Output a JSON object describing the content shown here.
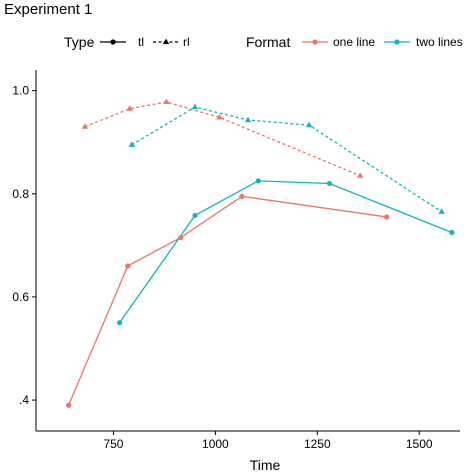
{
  "chart_data": {
    "type": "line",
    "title": "Experiment 1",
    "xlabel": "Time",
    "ylabel": "",
    "xlim": [
      560,
      1600
    ],
    "ylim": [
      0.34,
      1.04
    ],
    "x_ticks": [
      750,
      1000,
      1250,
      1500
    ],
    "x_tick_labels": [
      "750",
      "1000",
      "1250",
      "1500"
    ],
    "y_ticks": [
      0.4,
      0.6,
      0.8,
      1.0
    ],
    "y_tick_labels": [
      ".4",
      "0.6",
      "0.8",
      "1.0"
    ],
    "legend": {
      "placement": "top",
      "type_title": "Type",
      "type_entries": [
        {
          "label": "tl",
          "linestyle": "solid",
          "marker": "circle"
        },
        {
          "label": "rl",
          "linestyle": "dashed",
          "marker": "triangle"
        }
      ],
      "format_title": "Format",
      "format_entries": [
        {
          "label": "one line",
          "color": "#E8766D"
        },
        {
          "label": "two lines",
          "color": "#13B5BA"
        }
      ]
    },
    "series": [
      {
        "format": "one line",
        "type": "tl",
        "color": "#E8766D",
        "linestyle": "solid",
        "marker": "circle",
        "x": [
          640,
          785,
          915,
          1065,
          1420
        ],
        "y": [
          0.39,
          0.66,
          0.715,
          0.795,
          0.755
        ]
      },
      {
        "format": "two lines",
        "type": "tl",
        "color": "#13B5BA",
        "linestyle": "solid",
        "marker": "circle",
        "x": [
          765,
          950,
          1105,
          1280,
          1580
        ],
        "y": [
          0.55,
          0.758,
          0.825,
          0.82,
          0.725
        ]
      },
      {
        "format": "one line",
        "type": "rl",
        "color": "#E8766D",
        "linestyle": "dashed",
        "marker": "triangle",
        "x": [
          680,
          790,
          880,
          1010,
          1355
        ],
        "y": [
          0.93,
          0.965,
          0.978,
          0.948,
          0.835
        ]
      },
      {
        "format": "two lines",
        "type": "rl",
        "color": "#13B5BA",
        "linestyle": "dashed",
        "marker": "triangle",
        "x": [
          795,
          950,
          1080,
          1230,
          1555
        ],
        "y": [
          0.895,
          0.968,
          0.943,
          0.933,
          0.765
        ]
      }
    ]
  }
}
